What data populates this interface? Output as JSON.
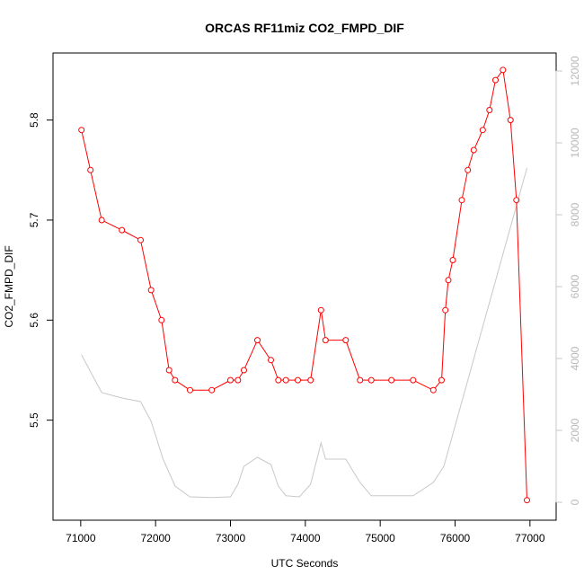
{
  "chart_data": {
    "type": "line",
    "title": "ORCAS RF11miz CO2_FMPD_DIF",
    "xlabel": "UTC Seconds",
    "ylabel": "CO2_FMPD_DIF",
    "xlim": [
      70630,
      77350
    ],
    "ylim": [
      5.4,
      5.867
    ],
    "y2lim": [
      -500,
      12500
    ],
    "x_ticks": [
      71000,
      72000,
      73000,
      74000,
      75000,
      76000,
      77000
    ],
    "y_ticks": [
      5.5,
      5.6,
      5.7,
      5.8
    ],
    "y2_ticks": [
      0,
      2000,
      4000,
      6000,
      8000,
      10000,
      12000
    ],
    "grid": false,
    "colors": {
      "primary": "#ff0000",
      "secondary": "#c8c8c8"
    },
    "series": [
      {
        "axis": "left",
        "style": "line+points",
        "x": [
          71010,
          71130,
          71280,
          71550,
          71800,
          71940,
          72080,
          72180,
          72260,
          72460,
          72750,
          73000,
          73100,
          73180,
          73360,
          73540,
          73640,
          73740,
          73900,
          74070,
          74210,
          74270,
          74540,
          74730,
          74880,
          75150,
          75440,
          75710,
          75820,
          75870,
          75910,
          75970,
          76090,
          76170,
          76250,
          76370,
          76460,
          76540,
          76640,
          76740,
          76820,
          76960
        ],
        "y": [
          5.79,
          5.75,
          5.7,
          5.69,
          5.68,
          5.63,
          5.6,
          5.55,
          5.54,
          5.53,
          5.53,
          5.54,
          5.54,
          5.55,
          5.58,
          5.56,
          5.54,
          5.54,
          5.54,
          5.54,
          5.61,
          5.58,
          5.58,
          5.54,
          5.54,
          5.54,
          5.54,
          5.53,
          5.54,
          5.61,
          5.64,
          5.66,
          5.72,
          5.75,
          5.77,
          5.79,
          5.81,
          5.84,
          5.85,
          5.8,
          5.72,
          5.42
        ]
      },
      {
        "axis": "right",
        "style": "line",
        "x": [
          71010,
          71280,
          71550,
          71800,
          71940,
          72100,
          72260,
          72460,
          72750,
          73000,
          73100,
          73180,
          73360,
          73540,
          73640,
          73740,
          73920,
          74070,
          74210,
          74270,
          74540,
          74730,
          74880,
          75150,
          75440,
          75710,
          75850,
          76960
        ],
        "y": [
          4100,
          3050,
          2900,
          2800,
          2250,
          1200,
          450,
          150,
          130,
          150,
          500,
          1000,
          1250,
          1050,
          450,
          180,
          150,
          500,
          1650,
          1200,
          1200,
          550,
          180,
          180,
          180,
          550,
          1000,
          9300
        ]
      }
    ]
  }
}
